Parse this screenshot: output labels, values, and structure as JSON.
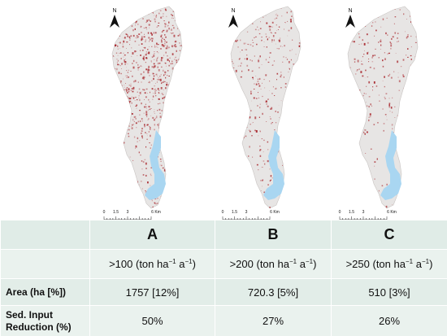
{
  "colors": {
    "basin_fill": "#e7e5e4",
    "erosion_red": "#a8262c",
    "reservoir": "#a9d6f1",
    "table_bg": "#e2ede8"
  },
  "maps": [
    {
      "id": "A",
      "north_label": "N",
      "scale_labels": [
        "0",
        "1.5",
        "3",
        "6 Km"
      ],
      "erosion_density": 0.95
    },
    {
      "id": "B",
      "north_label": "N",
      "scale_labels": [
        "0",
        "1.5",
        "3",
        "6 Km"
      ],
      "erosion_density": 0.4
    },
    {
      "id": "C",
      "north_label": "N",
      "scale_labels": [
        "0",
        "1.5",
        "3",
        "6 Km"
      ],
      "erosion_density": 0.25
    }
  ],
  "table": {
    "headers": [
      "",
      "A",
      "B",
      "C"
    ],
    "threshold_row": {
      "label": "",
      "values": [
        {
          "prefix": ">100 (ton ha",
          "exp1": "−1",
          "mid": " a",
          "exp2": "−1",
          "suffix": ")"
        },
        {
          "prefix": ">200 (ton ha",
          "exp1": "−1",
          "mid": " a",
          "exp2": "−1",
          "suffix": ")"
        },
        {
          "prefix": ">250 (ton ha",
          "exp1": "−1",
          "mid": " a",
          "exp2": "−1",
          "suffix": ")"
        }
      ]
    },
    "area_row": {
      "label": "Area (ha [%])",
      "values": [
        "1757 [12%]",
        "720.3 [5%]",
        "510 [3%]"
      ]
    },
    "sed_row": {
      "label_line1": "Sed. Input",
      "label_line2": "Reduction (%)",
      "values": [
        "50%",
        "27%",
        "26%"
      ]
    }
  }
}
